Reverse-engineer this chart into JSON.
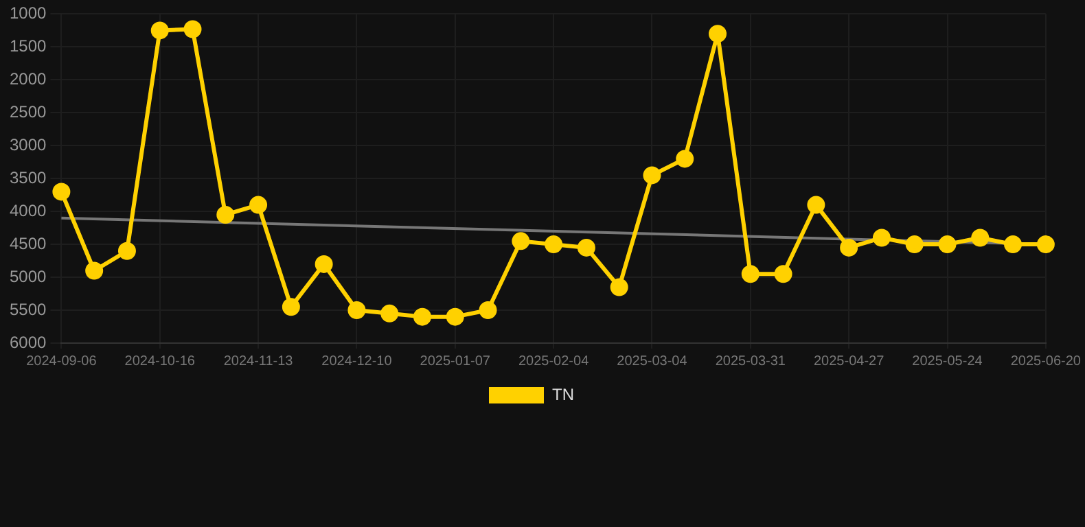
{
  "chart_data": {
    "type": "line",
    "categories": [
      "2024-09-06",
      null,
      null,
      "2024-10-16",
      null,
      null,
      "2024-11-13",
      null,
      null,
      "2024-12-10",
      null,
      null,
      "2025-01-07",
      null,
      null,
      "2025-02-04",
      null,
      null,
      "2025-03-04",
      null,
      null,
      "2025-03-31",
      null,
      null,
      "2025-04-27",
      null,
      null,
      "2025-05-24",
      null,
      null,
      "2025-06-20"
    ],
    "series": [
      {
        "name": "TN",
        "color": "#ffd100",
        "values": [
          3700,
          4900,
          4600,
          1250,
          1230,
          4050,
          3900,
          5450,
          4800,
          5500,
          5550,
          5600,
          5600,
          5500,
          4450,
          4500,
          4550,
          5150,
          3450,
          3200,
          1300,
          4950,
          4950,
          3900,
          4550,
          4400,
          4500,
          4500,
          4400,
          4500,
          4500
        ]
      },
      {
        "type": "line",
        "color": "#777777",
        "values": [
          4100,
          null,
          null,
          null,
          null,
          null,
          null,
          null,
          null,
          null,
          null,
          null,
          null,
          null,
          null,
          null,
          null,
          null,
          null,
          null,
          null,
          null,
          null,
          null,
          null,
          null,
          null,
          null,
          null,
          null,
          4500
        ],
        "marker": "none"
      }
    ],
    "ylim": [
      6000,
      1000
    ],
    "yticks": [
      1000,
      1500,
      2000,
      2500,
      3000,
      3500,
      4000,
      4500,
      5000,
      5500,
      6000
    ],
    "grid": true,
    "legend": "bottom",
    "marker": "circle",
    "line_style": "solid"
  }
}
